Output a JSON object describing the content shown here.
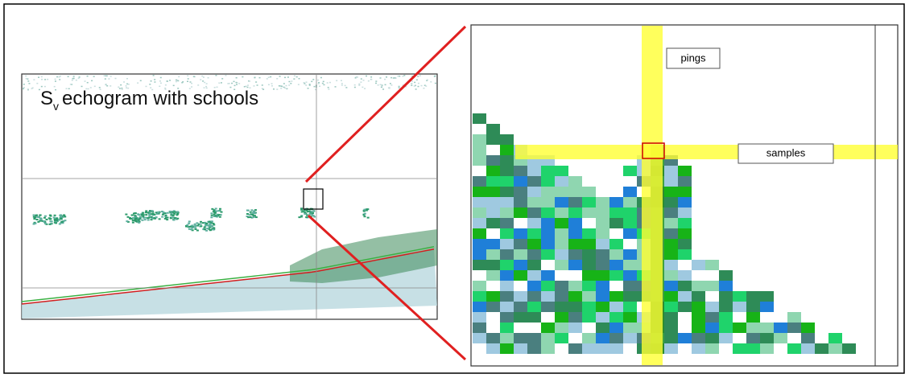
{
  "echogram": {
    "title": {
      "symbol": "S",
      "subscript": "v",
      "text": "echogram with schools"
    }
  },
  "zoom": {
    "pings_label": "pings",
    "samples_label": "samples"
  }
}
